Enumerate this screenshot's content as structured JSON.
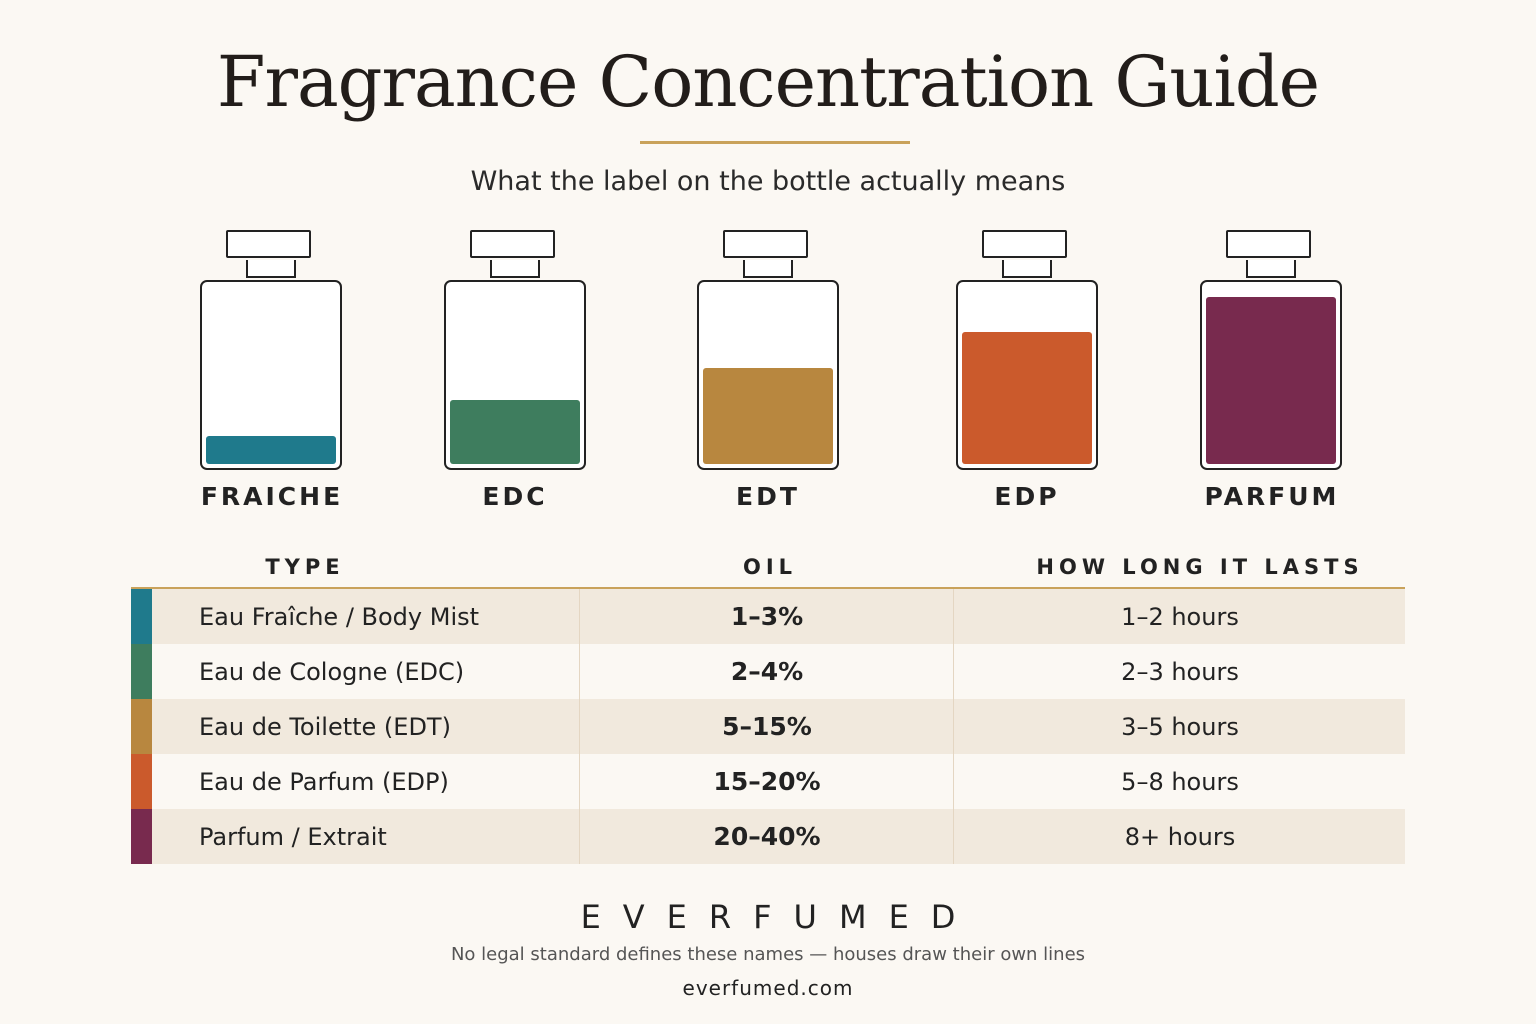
{
  "header": {
    "title": "Fragrance Concentration Guide",
    "subtitle": "What the label on the bottle actually means"
  },
  "bottles": [
    {
      "label": "FRAICHE",
      "fill": 0.16,
      "color": "#1f7a8c"
    },
    {
      "label": "EDC",
      "fill": 0.36,
      "color": "#3e7d5e"
    },
    {
      "label": "EDT",
      "fill": 0.54,
      "color": "#b8873f"
    },
    {
      "label": "EDP",
      "fill": 0.74,
      "color": "#cb5a2c"
    },
    {
      "label": "PARFUM",
      "fill": 0.94,
      "color": "#782a4e"
    }
  ],
  "table": {
    "headers": {
      "type": "TYPE",
      "oil": "OIL",
      "lasts": "HOW LONG IT LASTS"
    },
    "rows": [
      {
        "type": "Eau Fraîche / Body Mist",
        "oil": "1–3%",
        "lasts": "1–2 hours",
        "color": "#1f7a8c"
      },
      {
        "type": "Eau de Cologne (EDC)",
        "oil": "2–4%",
        "lasts": "2–3 hours",
        "color": "#3e7d5e"
      },
      {
        "type": "Eau de Toilette (EDT)",
        "oil": "5–15%",
        "lasts": "3–5 hours",
        "color": "#b8873f"
      },
      {
        "type": "Eau de Parfum (EDP)",
        "oil": "15–20%",
        "lasts": "5–8 hours",
        "color": "#cb5a2c"
      },
      {
        "type": "Parfum / Extrait",
        "oil": "20–40%",
        "lasts": "8+ hours",
        "color": "#782a4e"
      }
    ]
  },
  "footer": {
    "brand": "EVERFUMED",
    "note": "No legal standard defines these names — houses draw their own lines",
    "url": "everfumed.com"
  },
  "colors": {
    "accent": "#c9a25a",
    "background": "#fbf8f3",
    "row_shade": "#f1e9dd"
  }
}
